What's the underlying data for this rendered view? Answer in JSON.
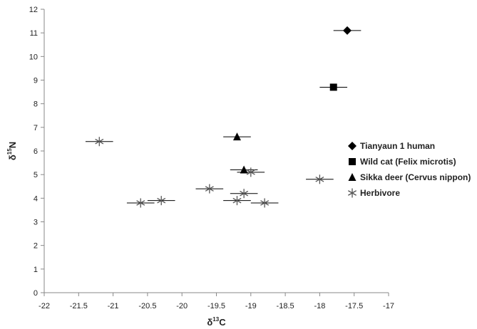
{
  "chart_data": {
    "type": "scatter",
    "xlabel": {
      "main": "δ",
      "sup": "13",
      "tail": "C"
    },
    "ylabel": {
      "main": "δ",
      "sup": "15",
      "tail": "N"
    },
    "xlim": [
      -22,
      -17
    ],
    "ylim": [
      0,
      12
    ],
    "xticks": [
      -22,
      -21.5,
      -21,
      -20.5,
      -20,
      -19.5,
      -19,
      -18.5,
      -18,
      -17.5,
      -17
    ],
    "yticks": [
      0,
      1,
      2,
      3,
      4,
      5,
      6,
      7,
      8,
      9,
      10,
      11,
      12
    ],
    "grid": false,
    "legend_position": "right",
    "error_bars": "horizontal",
    "series": [
      {
        "name": "Tianyaun 1 human",
        "marker": "diamond",
        "color": "#000000",
        "points": [
          {
            "x": -17.6,
            "y": 11.1,
            "xerr": 0.2
          }
        ]
      },
      {
        "name": "Wild cat (Felix microtis)",
        "marker": "square",
        "color": "#000000",
        "points": [
          {
            "x": -17.8,
            "y": 8.7,
            "xerr": 0.2
          }
        ]
      },
      {
        "name": "Sikka deer (Cervus nippon)",
        "marker": "triangle",
        "color": "#000000",
        "points": [
          {
            "x": -19.2,
            "y": 6.6,
            "xerr": 0.2
          },
          {
            "x": -19.1,
            "y": 5.2,
            "xerr": 0.2
          }
        ]
      },
      {
        "name": "Herbivore",
        "marker": "asterisk",
        "color": "#555555",
        "points": [
          {
            "x": -21.2,
            "y": 6.4,
            "xerr": 0.2
          },
          {
            "x": -20.6,
            "y": 3.8,
            "xerr": 0.2
          },
          {
            "x": -20.3,
            "y": 3.9,
            "xerr": 0.2
          },
          {
            "x": -19.6,
            "y": 4.4,
            "xerr": 0.2
          },
          {
            "x": -19.2,
            "y": 3.9,
            "xerr": 0.2
          },
          {
            "x": -19.1,
            "y": 4.2,
            "xerr": 0.2
          },
          {
            "x": -19.0,
            "y": 5.1,
            "xerr": 0.2
          },
          {
            "x": -18.8,
            "y": 3.8,
            "xerr": 0.2
          },
          {
            "x": -18.0,
            "y": 4.8,
            "xerr": 0.2
          }
        ]
      }
    ]
  }
}
